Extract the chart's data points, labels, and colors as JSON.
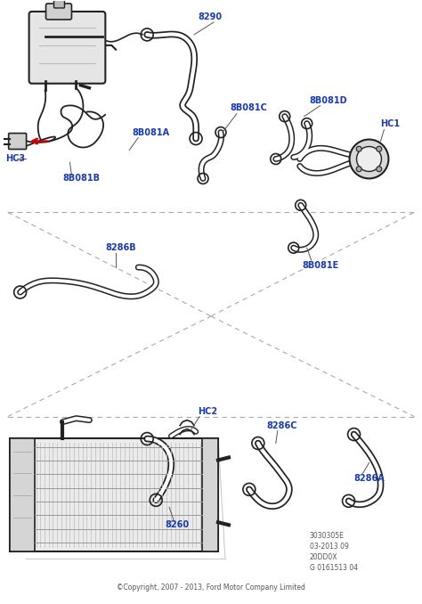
{
  "background_color": "#ffffff",
  "label_color": "#1a3aaa",
  "dark_color": "#222222",
  "gray_color": "#888888",
  "light_gray": "#cccccc",
  "copyright_text": "©Copyright, 2007 - 2013, Ford Motor Company Limited",
  "copyright_color": "#555555",
  "ref_lines": [
    "3030305E",
    "03-2013 09",
    "20DD0X",
    "G 0161513 04"
  ],
  "fig_width": 4.74,
  "fig_height": 6.78,
  "dpi": 100,
  "label_fs": 7.0,
  "small_fs": 5.5,
  "tube_lw_outer": 3.2,
  "tube_lw_inner": 1.6
}
